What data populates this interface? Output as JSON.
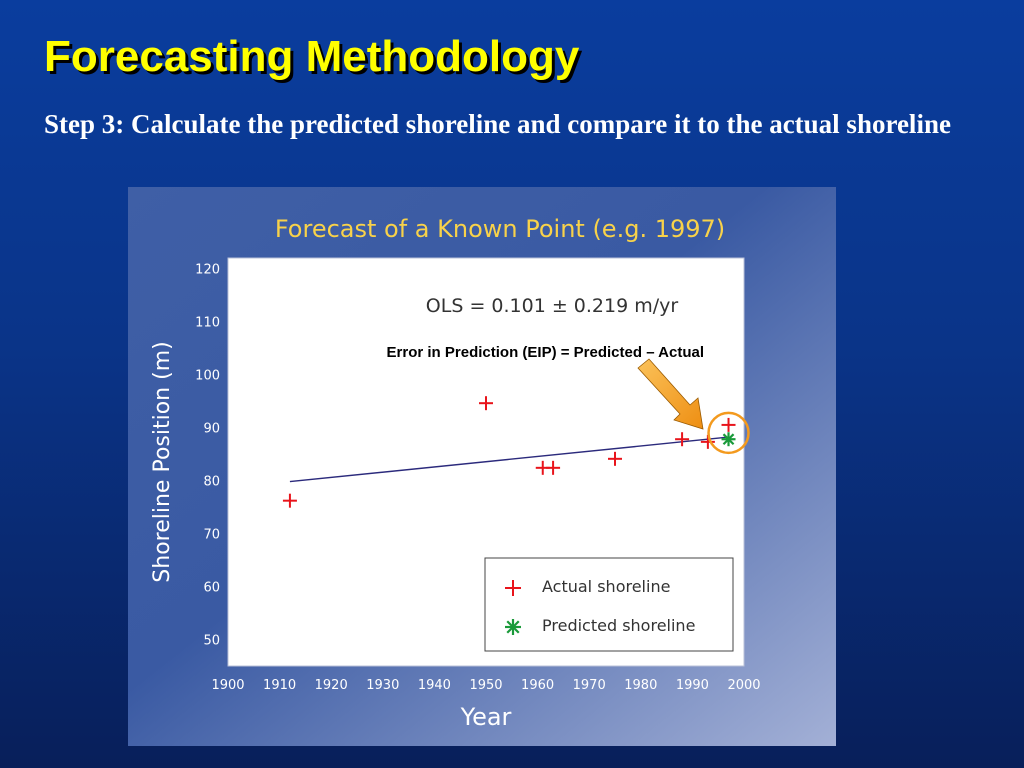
{
  "slide": {
    "title": "Forecasting Methodology",
    "subtitle": "Step 3:  Calculate the predicted shoreline and compare it to the actual shoreline"
  },
  "chart_data": {
    "type": "scatter",
    "title": "Forecast of a Known Point (e.g. 1997)",
    "xlabel": "Year",
    "ylabel": "Shoreline Position (m)",
    "xlim": [
      1900,
      2000
    ],
    "ylim": [
      45,
      122
    ],
    "x_ticks": [
      1900,
      1910,
      1920,
      1930,
      1940,
      1950,
      1960,
      1970,
      1980,
      1990,
      2000
    ],
    "y_ticks": [
      50,
      60,
      70,
      80,
      90,
      100,
      110,
      120
    ],
    "grid": false,
    "legend_position": "bottom-right",
    "annotations": {
      "ols": "OLS = 0.101 ± 0.219 m/yr",
      "eip": "Error in Prediction (EIP) = Predicted – Actual"
    },
    "series": [
      {
        "name": "Actual shoreline",
        "marker": "plus",
        "color": "#e8141b",
        "points": [
          {
            "x": 1912,
            "y": 76.2
          },
          {
            "x": 1950,
            "y": 94.6
          },
          {
            "x": 1961,
            "y": 82.4
          },
          {
            "x": 1963,
            "y": 82.4
          },
          {
            "x": 1975,
            "y": 84.1
          },
          {
            "x": 1988,
            "y": 87.8
          },
          {
            "x": 1993,
            "y": 87.3
          },
          {
            "x": 1997,
            "y": 90.5
          }
        ]
      },
      {
        "name": "Predicted shoreline",
        "marker": "asterisk",
        "color": "#1a9a3a",
        "points": [
          {
            "x": 1997,
            "y": 87.8
          }
        ]
      }
    ],
    "regression_line": {
      "color": "#2b2a7c",
      "from": {
        "x": 1912,
        "y": 79.8
      },
      "to": {
        "x": 1997,
        "y": 88.2
      }
    },
    "highlight_circle": {
      "x": 1997,
      "y": 89.0,
      "color": "#f39a1e"
    },
    "arrow_color": "#f39a1e"
  }
}
